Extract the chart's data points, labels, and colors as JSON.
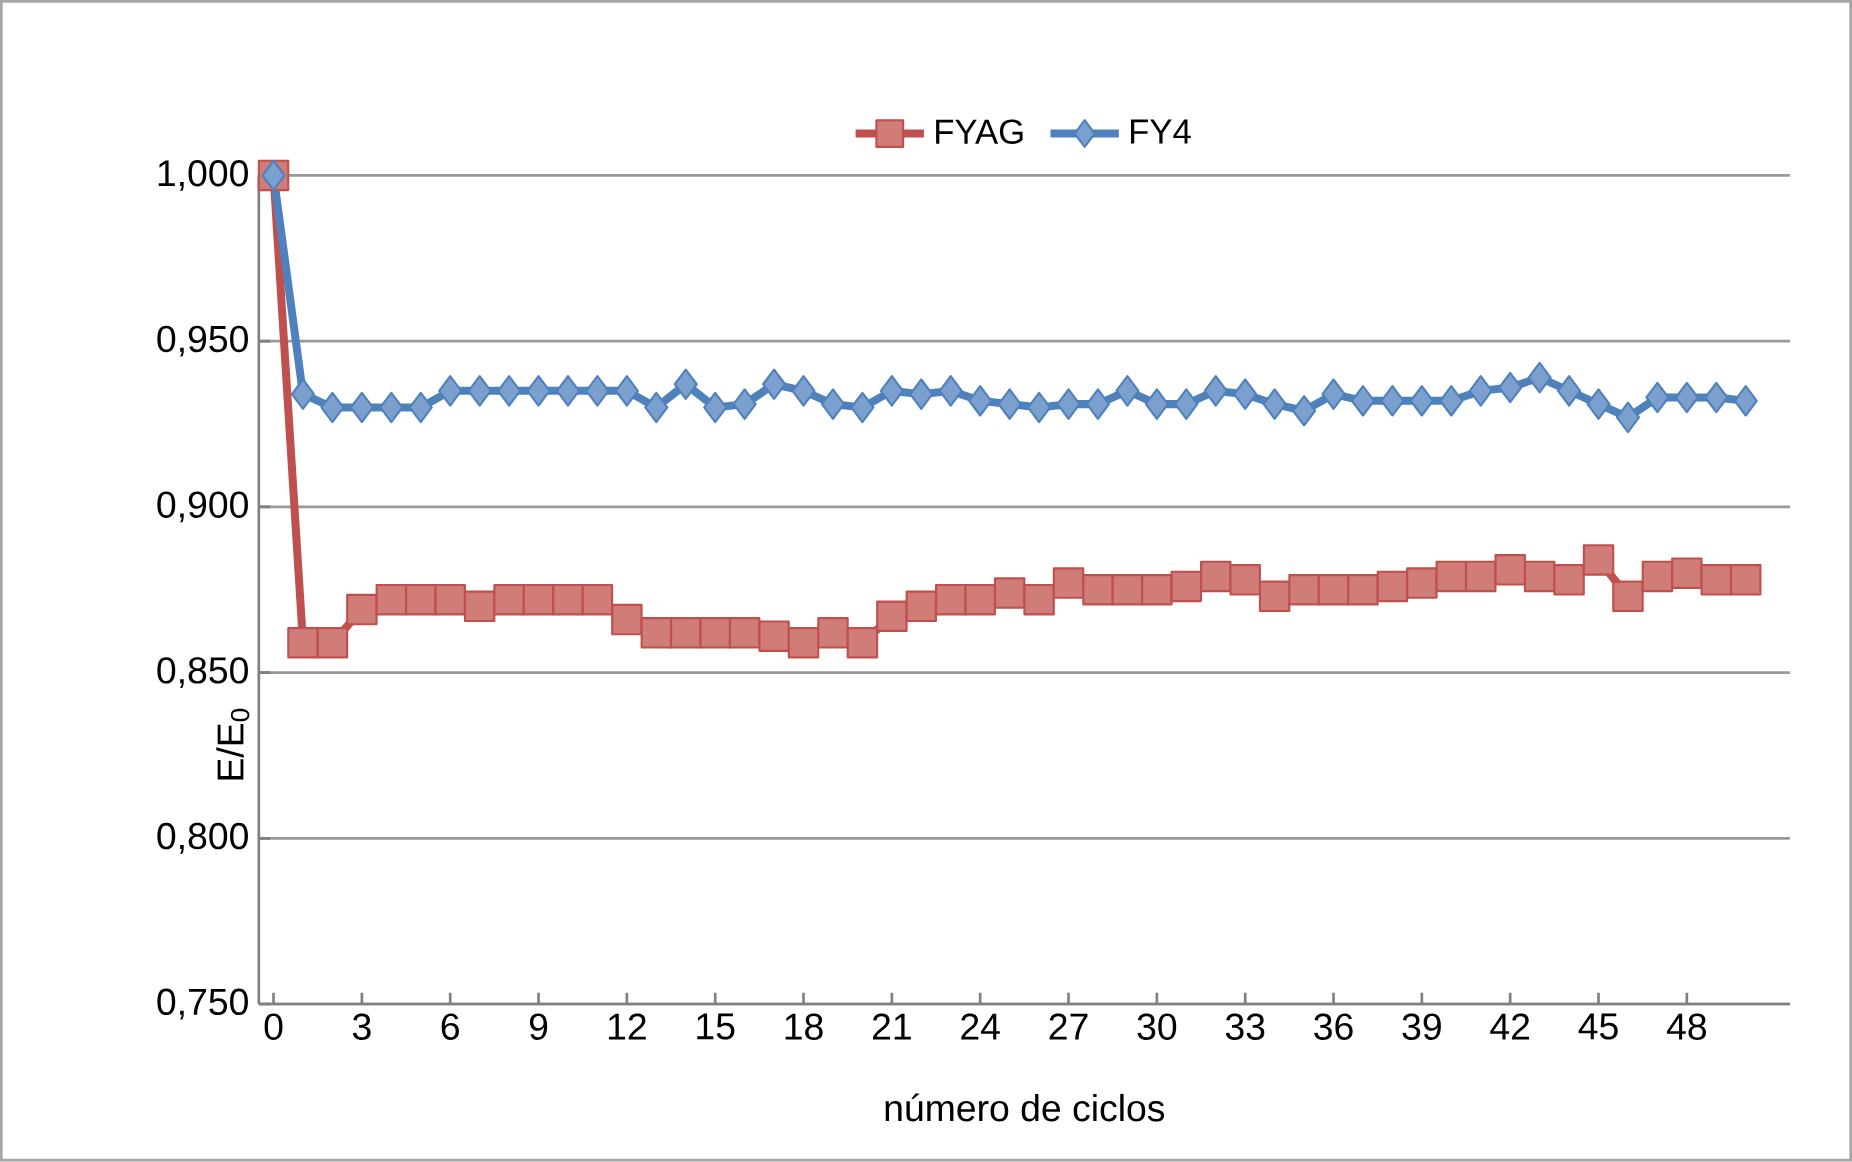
{
  "chart_data": {
    "type": "line",
    "xlabel": "número de ciclos",
    "ylabel": "E/E$_{0}$",
    "categories": [
      "0",
      null,
      null,
      "3",
      null,
      null,
      "6",
      null,
      null,
      "9",
      null,
      null,
      "12",
      null,
      null,
      "15",
      null,
      null,
      "18",
      null,
      null,
      "21",
      null,
      null,
      "24",
      null,
      null,
      "27",
      null,
      null,
      "30",
      null,
      null,
      "33",
      null,
      null,
      "36",
      null,
      null,
      "39",
      null,
      null,
      "42",
      null,
      null,
      "45",
      null,
      null,
      "48",
      null,
      null,
      null
    ],
    "series": [
      {
        "name": "FYAG",
        "color": "#c0504d",
        "marker": "square",
        "values": [
          1.0,
          0.859,
          0.859,
          0.869,
          0.872,
          0.872,
          0.872,
          0.87,
          0.872,
          0.872,
          0.872,
          0.872,
          0.866,
          0.862,
          0.862,
          0.862,
          0.862,
          0.861,
          0.859,
          0.862,
          0.859,
          0.867,
          0.87,
          0.872,
          0.872,
          0.874,
          0.872,
          0.877,
          0.875,
          0.875,
          0.875,
          0.876,
          0.879,
          0.878,
          0.873,
          0.875,
          0.875,
          0.875,
          0.876,
          0.877,
          0.879,
          0.879,
          0.881,
          0.879,
          0.878,
          0.884,
          0.873,
          0.879,
          0.88,
          0.878,
          0.878,
          null
        ]
      },
      {
        "name": "FY4",
        "color": "#4f81bd",
        "marker": "diamond",
        "values": [
          1.0,
          0.934,
          0.93,
          0.93,
          0.93,
          0.93,
          0.935,
          0.935,
          0.935,
          0.935,
          0.935,
          0.935,
          0.935,
          0.93,
          0.937,
          0.93,
          0.931,
          0.937,
          0.935,
          0.931,
          0.93,
          0.935,
          0.934,
          0.935,
          0.932,
          0.931,
          0.93,
          0.931,
          0.931,
          0.935,
          0.931,
          0.931,
          0.935,
          0.934,
          0.931,
          0.929,
          0.934,
          0.932,
          0.932,
          0.932,
          0.932,
          0.935,
          0.936,
          0.939,
          0.935,
          0.931,
          0.927,
          0.933,
          0.933,
          0.933,
          0.932,
          null
        ]
      }
    ],
    "ylim": [
      0.75,
      1.0
    ],
    "yticks": [
      {
        "value": 0.75,
        "label": "0,750"
      },
      {
        "value": 0.8,
        "label": "0,800"
      },
      {
        "value": 0.85,
        "label": "0,850"
      },
      {
        "value": 0.9,
        "label": "0,900"
      },
      {
        "value": 0.95,
        "label": "0,950"
      },
      {
        "value": 1.0,
        "label": "1,000"
      }
    ],
    "grid": "y",
    "legend": "top",
    "line_style": "solid"
  }
}
